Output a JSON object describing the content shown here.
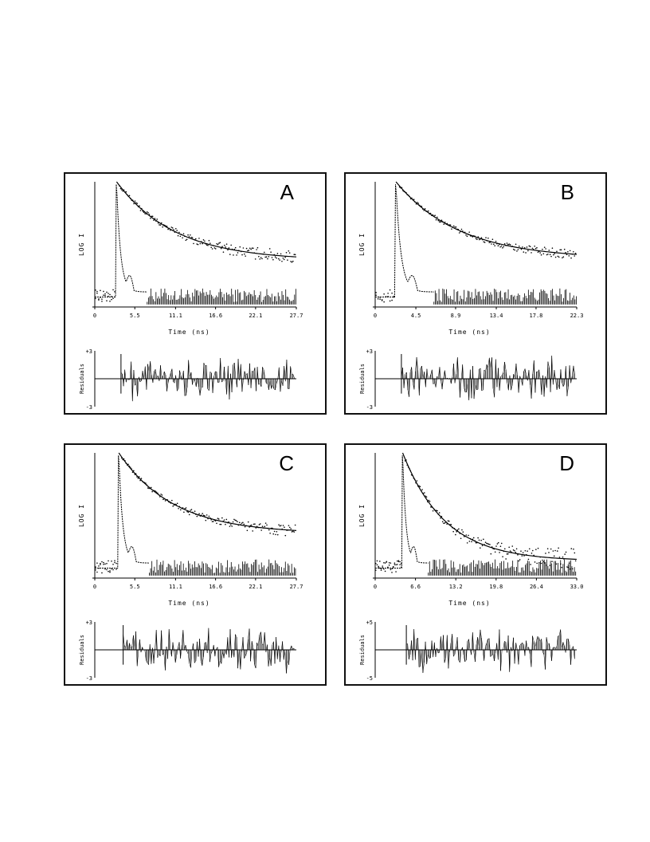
{
  "chart_data": [
    {
      "type": "line",
      "panel_label": "A",
      "ylabel": "LOG I",
      "xlabel": "Time (ns)",
      "residuals_label": "Residuals",
      "x_ticks": [
        "0",
        "5.5",
        "11.1",
        "16.6",
        "22.1",
        "27.7"
      ],
      "xlim": [
        0,
        27.7
      ],
      "residual_ticks": [
        "+3",
        "-3"
      ],
      "residual_range": [
        -3,
        3
      ],
      "pulse_start": 3.0,
      "decay_tau": 8.0,
      "decay_end": 0.4,
      "scatter_spread": 0.03,
      "series": [
        {
          "name": "",
          "description_kind": "instrument response",
          "x": [
            0,
            2.8,
            3.0,
            3.5,
            4.5,
            5.5,
            27.7
          ],
          "y": [
            0.08,
            0.08,
            0.98,
            0.55,
            0.25,
            0.15,
            0.1
          ]
        },
        {
          "name": "",
          "description_kind": "decay fit",
          "x": [
            3.0,
            27.7
          ],
          "y": [
            1.0,
            0.4
          ]
        }
      ]
    },
    {
      "type": "line",
      "panel_label": "B",
      "ylabel": "LOG I",
      "xlabel": "Time (ns)",
      "residuals_label": "Residuals",
      "x_ticks": [
        "0",
        "4.5",
        "8.9",
        "13.4",
        "17.8",
        "22.3"
      ],
      "xlim": [
        0,
        22.3
      ],
      "residual_ticks": [
        "+3",
        "-3"
      ],
      "residual_range": [
        -3,
        3
      ],
      "pulse_start": 2.3,
      "decay_tau": 7.0,
      "decay_end": 0.42,
      "scatter_spread": 0.02,
      "series": [
        {
          "name": "",
          "description_kind": "instrument response",
          "x": [
            0,
            2.2,
            2.3,
            3.0,
            4.0,
            5.0,
            22.3
          ],
          "y": [
            0.08,
            0.08,
            0.98,
            0.5,
            0.2,
            0.12,
            0.1
          ]
        },
        {
          "name": "",
          "description_kind": "decay fit",
          "x": [
            2.3,
            22.3
          ],
          "y": [
            1.0,
            0.42
          ]
        }
      ]
    },
    {
      "type": "line",
      "panel_label": "C",
      "ylabel": "LOG I",
      "xlabel": "Time (ns)",
      "residuals_label": "Residuals",
      "x_ticks": [
        "0",
        "5.5",
        "11.1",
        "16.6",
        "22.1",
        "27.7"
      ],
      "xlim": [
        0,
        27.7
      ],
      "residual_ticks": [
        "+3",
        "-3"
      ],
      "residual_range": [
        -3,
        3
      ],
      "pulse_start": 3.3,
      "decay_tau": 7.5,
      "decay_end": 0.38,
      "scatter_spread": 0.025,
      "series": [
        {
          "name": "",
          "description_kind": "instrument response",
          "x": [
            0,
            3.1,
            3.3,
            4.0,
            5.0,
            6.0,
            27.7
          ],
          "y": [
            0.08,
            0.08,
            0.98,
            0.5,
            0.22,
            0.13,
            0.1
          ]
        },
        {
          "name": "",
          "description_kind": "decay fit",
          "x": [
            3.3,
            27.7
          ],
          "y": [
            1.0,
            0.38
          ]
        }
      ]
    },
    {
      "type": "line",
      "panel_label": "D",
      "ylabel": "LOG I",
      "xlabel": "Time (ns)",
      "residuals_label": "Residuals",
      "x_ticks": [
        "0",
        "6.6",
        "13.2",
        "19.8",
        "26.4",
        "33.0"
      ],
      "xlim": [
        0,
        33.0
      ],
      "residual_ticks": [
        "+5",
        "-5"
      ],
      "residual_range": [
        -5,
        5
      ],
      "pulse_start": 4.5,
      "decay_tau": 7.0,
      "decay_end": 0.15,
      "scatter_spread": 0.045,
      "series": [
        {
          "name": "",
          "description_kind": "instrument response",
          "x": [
            0,
            4.3,
            4.5,
            5.2,
            6.2,
            7.2,
            33.0
          ],
          "y": [
            0.08,
            0.08,
            0.98,
            0.5,
            0.22,
            0.13,
            0.1
          ]
        },
        {
          "name": "",
          "description_kind": "decay fit",
          "x": [
            4.5,
            33.0
          ],
          "y": [
            1.0,
            0.15
          ]
        }
      ]
    }
  ]
}
